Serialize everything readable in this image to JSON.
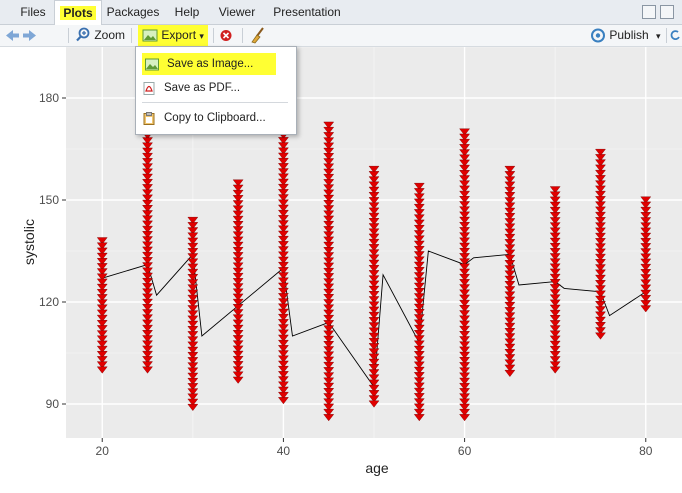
{
  "tabs": [
    {
      "label": "Files",
      "highlighted": false,
      "active": false
    },
    {
      "label": "Plots",
      "highlighted": true,
      "active": true
    },
    {
      "label": "Packages",
      "highlighted": false,
      "active": false
    },
    {
      "label": "Help",
      "highlighted": false,
      "active": false
    },
    {
      "label": "Viewer",
      "highlighted": false,
      "active": false
    },
    {
      "label": "Presentation",
      "highlighted": false,
      "active": false
    }
  ],
  "toolbar": {
    "zoom_label": "Zoom",
    "export_label": "Export",
    "publish_label": "Publish"
  },
  "export_menu": {
    "items": [
      {
        "label": "Save as Image...",
        "icon": "image-icon",
        "highlighted": true
      },
      {
        "label": "Save as PDF...",
        "icon": "pdf-icon",
        "highlighted": false
      },
      {
        "label": "Copy to Clipboard...",
        "icon": "clipboard-icon",
        "highlighted": false
      }
    ]
  },
  "colors": {
    "highlight": "#ffff33",
    "panel_bg": "#ebebeb",
    "marker": "#e00000",
    "marker_edge": "#7a0000"
  },
  "chart_data": {
    "type": "scatter",
    "xlabel": "age",
    "ylabel": "systolic",
    "xlim": [
      16,
      84
    ],
    "ylim": [
      80,
      195
    ],
    "xticks": [
      20,
      40,
      60,
      80
    ],
    "yticks": [
      90,
      120,
      150,
      180
    ],
    "grid": true,
    "marker": "triangle-down",
    "point_ranges": [
      {
        "x": 20,
        "ymin": 100,
        "ymax": 138
      },
      {
        "x": 25,
        "ymin": 100,
        "ymax": 195
      },
      {
        "x": 30,
        "ymin": 89,
        "ymax": 144
      },
      {
        "x": 35,
        "ymin": 97,
        "ymax": 155
      },
      {
        "x": 40,
        "ymin": 91,
        "ymax": 195
      },
      {
        "x": 45,
        "ymin": 86,
        "ymax": 172
      },
      {
        "x": 50,
        "ymin": 90,
        "ymax": 159
      },
      {
        "x": 55,
        "ymin": 86,
        "ymax": 154
      },
      {
        "x": 60,
        "ymin": 86,
        "ymax": 170
      },
      {
        "x": 65,
        "ymin": 99,
        "ymax": 159
      },
      {
        "x": 70,
        "ymin": 100,
        "ymax": 153
      },
      {
        "x": 75,
        "ymin": 110,
        "ymax": 164
      },
      {
        "x": 80,
        "ymin": 118,
        "ymax": 150
      }
    ],
    "path": {
      "x": [
        20,
        25,
        26,
        30,
        31,
        40,
        41,
        45,
        50,
        51,
        55,
        56,
        60,
        61,
        65,
        66,
        70,
        71,
        75,
        76,
        80
      ],
      "y": [
        127,
        131,
        122,
        134,
        110,
        130,
        110,
        114,
        95,
        128,
        108,
        135,
        131,
        133,
        134,
        125,
        126,
        124,
        123,
        116,
        123
      ]
    }
  }
}
